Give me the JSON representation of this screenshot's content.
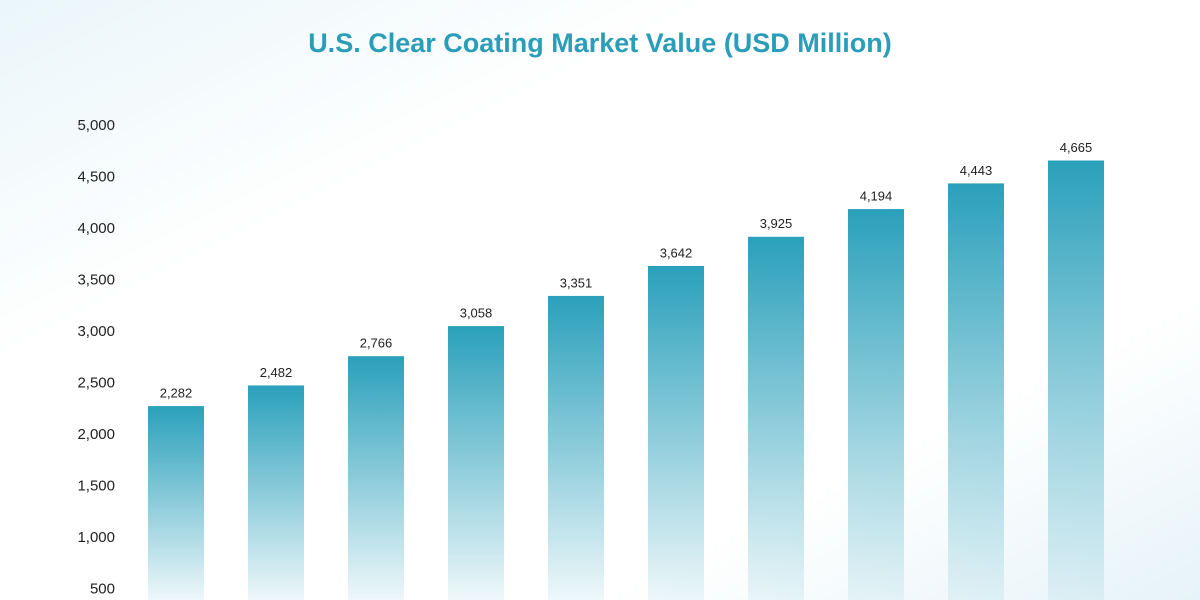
{
  "chart_data": {
    "type": "bar",
    "title": "U.S. Clear Coating Market Value (USD Million)",
    "categories": [
      null,
      null,
      null,
      null,
      null,
      null,
      null,
      null,
      null,
      null
    ],
    "values": [
      2282,
      2482,
      2766,
      3058,
      3351,
      3642,
      3925,
      4194,
      4443,
      4665
    ],
    "value_labels": [
      "2,282",
      "2,482",
      "2,766",
      "3,058",
      "3,351",
      "3,642",
      "3,925",
      "4,194",
      "4,443",
      "4,665"
    ],
    "color": "#2aa0bb",
    "ylim": [
      400,
      5000
    ],
    "yticks": [
      500,
      {
        "value": 1000,
        "label": "1,000"
      },
      {
        "value": 1500,
        "label": "1,500"
      },
      {
        "value": 2000,
        "label": "2,000"
      },
      {
        "value": 2500,
        "label": "2,500"
      },
      {
        "value": 3000,
        "label": "3,000"
      },
      {
        "value": 3500,
        "label": "3,500"
      },
      {
        "value": 4000,
        "label": "4,000"
      },
      {
        "value": 4500,
        "label": "4,500"
      },
      {
        "value": 5000,
        "label": "5,000"
      }
    ],
    "grid": false
  }
}
